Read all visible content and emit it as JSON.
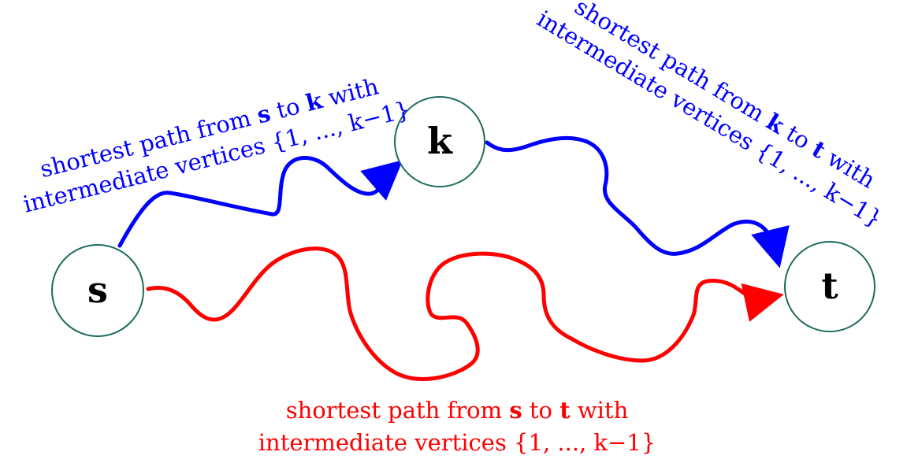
{
  "colors": {
    "blue": "#0000ff",
    "red": "#ff0000",
    "node_stroke": "#1d6b5f",
    "label": "#000000"
  },
  "nodes": {
    "s": "s",
    "k": "k",
    "t": "t"
  },
  "labels": {
    "s_to_k": {
      "line1": {
        "pre": "shortest path from ",
        "v1": "s",
        "mid": " to ",
        "v2": "k",
        "post": " with"
      },
      "line2": "intermediate vertices {1, ..., k−1}"
    },
    "k_to_t": {
      "line1": {
        "pre": "shortest path from ",
        "v1": "k",
        "mid": " to ",
        "v2": "t",
        "post": " with"
      },
      "line2": "intermediate vertices {1, ..., k−1}"
    },
    "s_to_t": {
      "line1": {
        "pre": "shortest path from ",
        "v1": "s",
        "mid": " to ",
        "v2": "t",
        "post": " with"
      },
      "line2": "intermediate vertices {1, ..., k−1}"
    }
  }
}
